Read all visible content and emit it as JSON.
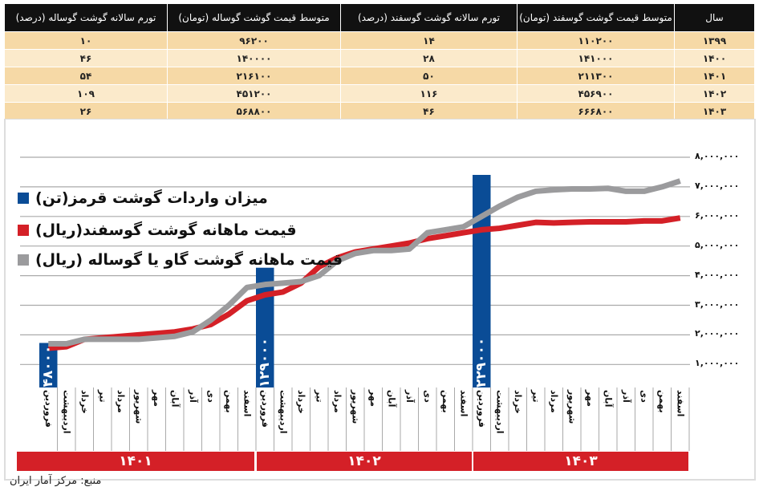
{
  "table": {
    "headers": [
      "سال",
      "متوسط قیمت گوشت گوسفند (تومان)",
      "تورم سالانه گوشت گوسفند (درصد)",
      "متوسط قیمت گوشت گوساله (تومان)",
      "تورم سالانه گوشت گوساله (درصد)"
    ],
    "rows": [
      [
        "۱۳۹۹",
        "۱۱۰۲۰۰",
        "۱۴",
        "۹۶۲۰۰",
        "۱۰"
      ],
      [
        "۱۴۰۰",
        "۱۴۱۰۰۰",
        "۲۸",
        "۱۴۰۰۰۰",
        "۴۶"
      ],
      [
        "۱۴۰۱",
        "۲۱۱۳۰۰",
        "۵۰",
        "۲۱۶۱۰۰",
        "۵۴"
      ],
      [
        "۱۴۰۲",
        "۴۵۶۹۰۰",
        "۱۱۶",
        "۴۵۱۲۰۰",
        "۱۰۹"
      ],
      [
        "۱۴۰۳",
        "۶۶۶۸۰۰",
        "۴۶",
        "۵۶۸۸۰۰",
        "۲۶"
      ]
    ]
  },
  "chart_data": {
    "type": "bar+line",
    "legend_position": "top-left",
    "grid": true,
    "ylim": [
      0,
      8000000
    ],
    "y_ticks": [
      "۸,۰۰۰,۰۰۰",
      "۷,۰۰۰,۰۰۰",
      "۶,۰۰۰,۰۰۰",
      "۵,۰۰۰,۰۰۰",
      "۴,۰۰۰,۰۰۰",
      "۳,۰۰۰,۰۰۰",
      "۲,۰۰۰,۰۰۰",
      "۱,۰۰۰,۰۰۰"
    ],
    "y_tick_values": [
      8000000,
      7000000,
      6000000,
      5000000,
      4000000,
      3000000,
      2000000,
      1000000
    ],
    "months": [
      "فروردین",
      "اردیبهشت",
      "خرداد",
      "تیر",
      "مرداد",
      "شهریور",
      "مهر",
      "آبان",
      "آذر",
      "دی",
      "بهمن",
      "اسفند"
    ],
    "years": [
      "۱۴۰۱",
      "۱۴۰۲",
      "۱۴۰۳"
    ],
    "bars": {
      "name": "میزان واردات گوشت قرمز(تن)",
      "color": "#0a4c96",
      "points": [
        {
          "year": "۱۴۰۱",
          "month": "فروردین",
          "value": 48000,
          "label": "۴۸۰۰۰"
        },
        {
          "year": "۱۴۰۲",
          "month": "فروردین",
          "value": 129000,
          "label": "۱۲۹۰۰۰"
        },
        {
          "year": "۱۴۰۳",
          "month": "فروردین",
          "value": 229000,
          "label": "۲۲۹۰۰۰"
        }
      ]
    },
    "series": [
      {
        "name": "قیمت ماهانه گوشت گوسفند(ریال)",
        "color": "#d42027",
        "values": [
          1550000,
          1600000,
          1850000,
          1900000,
          1950000,
          2000000,
          2050000,
          2100000,
          2200000,
          2350000,
          2700000,
          3150000,
          3350000,
          3450000,
          3750000,
          4300000,
          4600000,
          4800000,
          4900000,
          5000000,
          5100000,
          5250000,
          5350000,
          5450000,
          5550000,
          5600000,
          5700000,
          5800000,
          5780000,
          5800000,
          5820000,
          5820000,
          5820000,
          5850000,
          5850000,
          5950000
        ]
      },
      {
        "name": "قیمت ماهانه گوشت گاو یا گوساله (ریال)",
        "color": "#9b9b9d",
        "values": [
          1700000,
          1700000,
          1850000,
          1850000,
          1850000,
          1850000,
          1900000,
          1950000,
          2100000,
          2500000,
          3000000,
          3600000,
          3700000,
          3750000,
          3800000,
          4000000,
          4500000,
          4750000,
          4850000,
          4850000,
          4900000,
          5450000,
          5550000,
          5650000,
          6000000,
          6350000,
          6650000,
          6850000,
          6900000,
          6930000,
          6930000,
          6950000,
          6850000,
          6850000,
          7000000,
          7200000
        ]
      }
    ]
  },
  "source": "منبع: مرکز آمار ایران"
}
